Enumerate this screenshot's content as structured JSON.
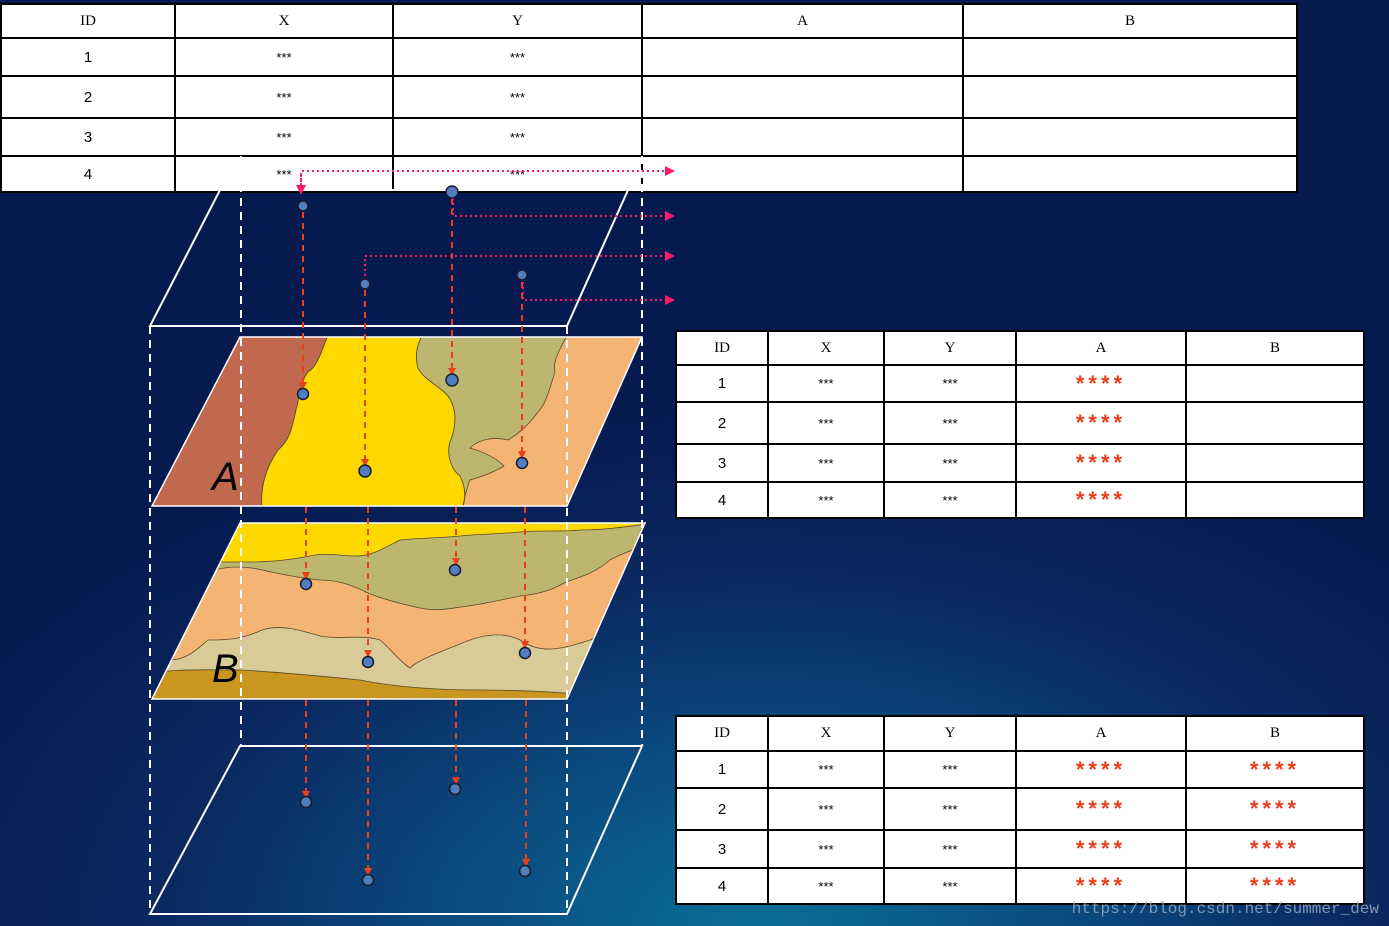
{
  "tables": [
    {
      "name": "table-top",
      "headers": [
        "ID",
        "X",
        "Y",
        "A",
        "B"
      ],
      "rows": [
        [
          "1",
          "***",
          "***",
          "",
          ""
        ],
        [
          "2",
          "***",
          "***",
          "",
          ""
        ],
        [
          "3",
          "***",
          "***",
          "",
          ""
        ],
        [
          "4",
          "***",
          "***",
          "",
          ""
        ]
      ]
    },
    {
      "name": "table-middle",
      "headers": [
        "ID",
        "X",
        "Y",
        "A",
        "B"
      ],
      "rows": [
        [
          "1",
          "***",
          "***",
          "****",
          ""
        ],
        [
          "2",
          "***",
          "***",
          "****",
          ""
        ],
        [
          "3",
          "***",
          "***",
          "****",
          ""
        ],
        [
          "4",
          "***",
          "***",
          "****",
          ""
        ]
      ]
    },
    {
      "name": "table-bottom",
      "headers": [
        "ID",
        "X",
        "Y",
        "A",
        "B"
      ],
      "rows": [
        [
          "1",
          "***",
          "***",
          "****",
          "****"
        ],
        [
          "2",
          "***",
          "***",
          "****",
          "****"
        ],
        [
          "3",
          "***",
          "***",
          "****",
          "****"
        ],
        [
          "4",
          "***",
          "***",
          "****",
          "****"
        ]
      ]
    }
  ],
  "layers": {
    "layer_a_label": "A",
    "layer_b_label": "B"
  },
  "watermark": "https://blog.csdn.net/summer_dew",
  "colors": {
    "background": "#061a50",
    "arrow_red": "#e8401c",
    "arrow_magenta": "#ff1a66",
    "point_fill": "#4f7fbf",
    "layer_a": [
      "#c0694e",
      "#ffd800",
      "#bdb66e",
      "#f4b574"
    ],
    "layer_b": [
      "#ffd800",
      "#bdb66e",
      "#f4b574",
      "#d8cb98",
      "#c9971f"
    ]
  }
}
